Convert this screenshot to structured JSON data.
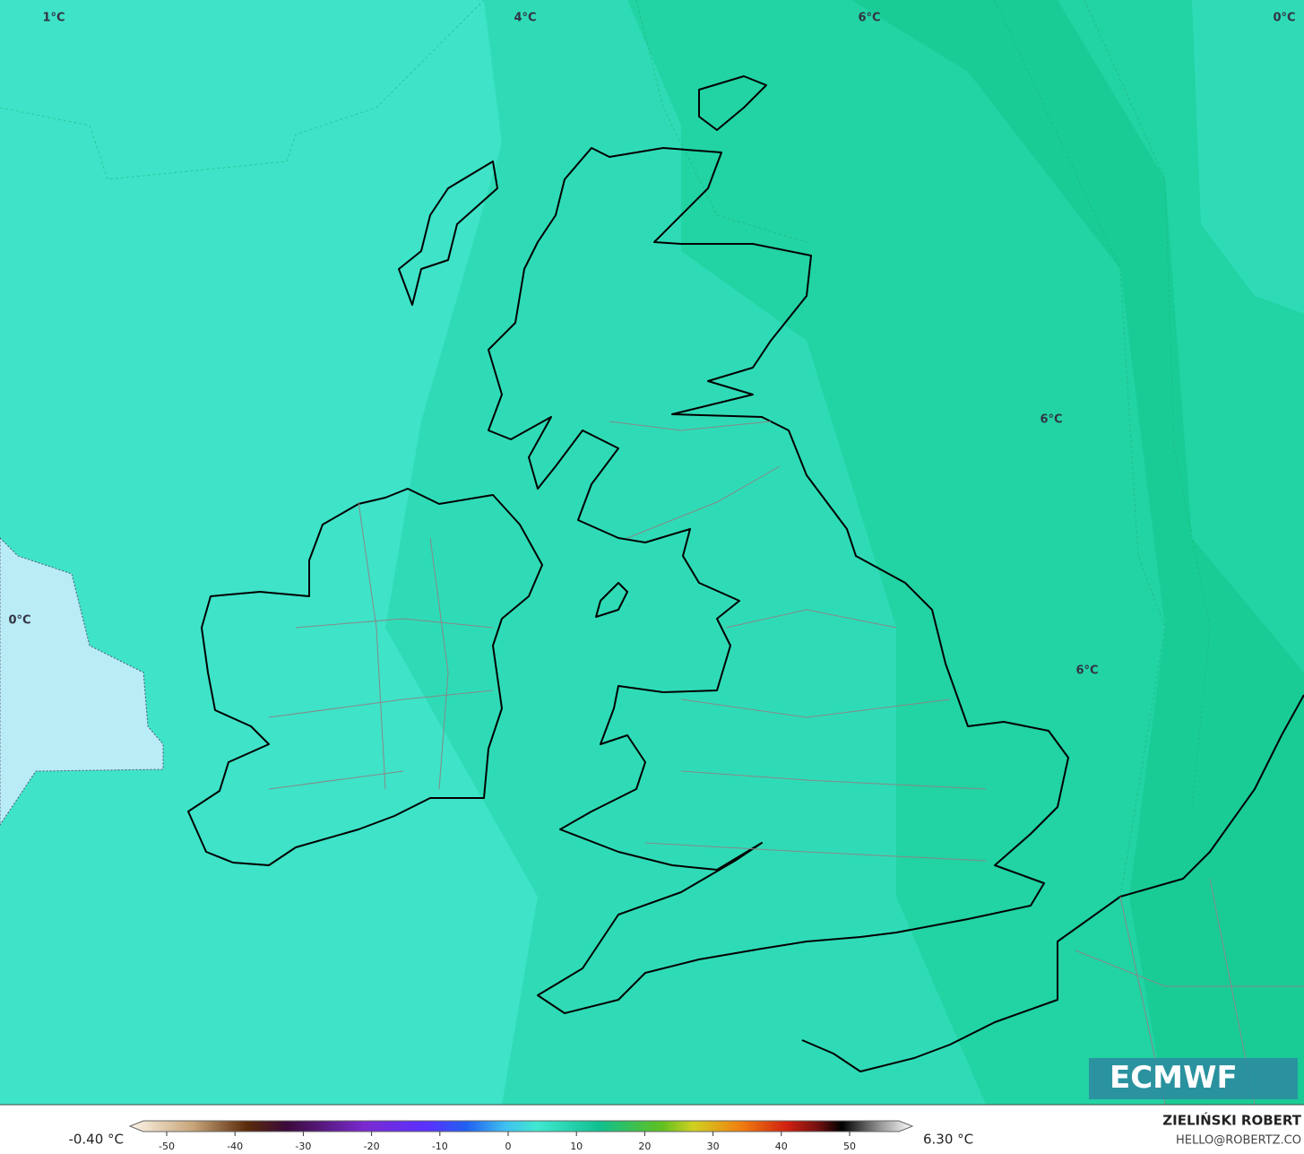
{
  "map": {
    "contour_labels": [
      "1°C",
      "4°C",
      "6°C",
      "0°C",
      "0°C",
      "6°C",
      "6°C"
    ],
    "colorbar": {
      "min_label": "-0.40 °C",
      "max_label": "6.30 °C",
      "ticks": [
        -50,
        -40,
        -30,
        -20,
        -10,
        0,
        10,
        20,
        30,
        40,
        50
      ]
    },
    "credit": {
      "author": "ZIELIŃSKI ROBERT",
      "contact": "HELLO@ROBERTZ.CO"
    },
    "logo": "ECMWF"
  }
}
